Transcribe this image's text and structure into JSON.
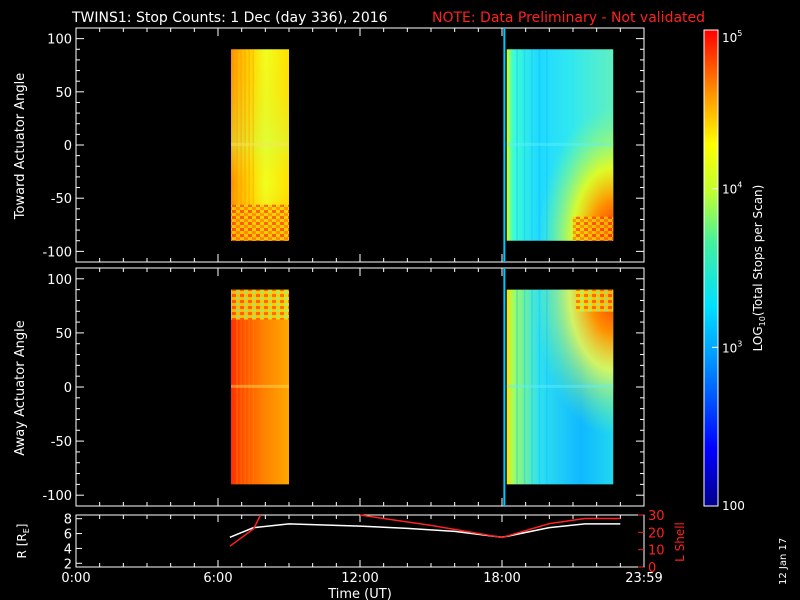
{
  "title": "TWINS1: Stop Counts:  1 Dec (day 336), 2016",
  "note": "NOTE: Data Preliminary - Not validated",
  "date_stamp": "12 Jan 17",
  "colors": {
    "background": "#000000",
    "axes": "#ffffff",
    "note": "#ff2020",
    "lshell": "#ff2020",
    "radius": "#ffffff",
    "marker": "#00c8ff"
  },
  "chart_data": [
    {
      "type": "heatmap",
      "panel": "toward",
      "ylabel": "Toward Actuator Angle",
      "ylim": [
        -110,
        110
      ],
      "yticks": [
        100,
        50,
        0,
        -50,
        -100
      ],
      "ytick_labels": [
        "100",
        "50",
        "0",
        "-50",
        "-100"
      ],
      "xlim_hours": [
        0,
        24
      ],
      "blocks": [
        {
          "start_hour": 6.55,
          "end_hour": 9.0,
          "angle_range": [
            -90,
            90
          ],
          "level": "high (orange-yellow)"
        },
        {
          "start_hour": 18.2,
          "end_hour": 22.7,
          "angle_range": [
            -90,
            90
          ],
          "level": "low (cyan-green)"
        }
      ],
      "marker_hour": 18.1
    },
    {
      "type": "heatmap",
      "panel": "away",
      "ylabel": "Away Actuator Angle",
      "ylim": [
        -110,
        110
      ],
      "yticks": [
        100,
        50,
        0,
        -50,
        -100
      ],
      "ytick_labels": [
        "100",
        "50",
        "0",
        "-50",
        "-100"
      ],
      "xlim_hours": [
        0,
        24
      ],
      "blocks": [
        {
          "start_hour": 6.55,
          "end_hour": 9.0,
          "angle_range": [
            -90,
            90
          ],
          "level": "high (orange-red)"
        },
        {
          "start_hour": 18.2,
          "end_hour": 22.7,
          "angle_range": [
            -90,
            90
          ],
          "level": "low (cyan-blue)"
        }
      ],
      "marker_hour": 18.1
    },
    {
      "type": "line",
      "panel": "orbit",
      "xlabel": "Time (UT)",
      "xticks_hours": [
        0,
        6,
        12,
        18,
        24
      ],
      "xtick_labels": [
        "0:00",
        "6:00",
        "12:00",
        "18:00",
        "23:59"
      ],
      "y_left_label": "R [RE]",
      "y_left_label_parts": [
        "R [R",
        "E",
        "]"
      ],
      "y_left_lim": [
        1.5,
        8.5
      ],
      "y_left_ticks": [
        "8",
        "6",
        "4",
        "2"
      ],
      "y_right_label": "L Shell",
      "y_right_lim": [
        0,
        30
      ],
      "y_right_ticks": [
        "30",
        "20",
        "10",
        "0"
      ],
      "series": [
        {
          "axis": "left",
          "color": "#ffffff",
          "x": [
            6.5,
            7.5,
            9,
            12,
            14,
            16,
            18,
            20,
            21.5,
            23
          ],
          "y": [
            5.5,
            6.8,
            7.3,
            7.0,
            6.7,
            6.3,
            5.5,
            6.8,
            7.3,
            7.3
          ]
        },
        {
          "axis": "right",
          "color": "#ff2020",
          "segments": [
            {
              "x": [
                6.5,
                7.5,
                7.8
              ],
              "y": [
                12,
                22,
                30
              ]
            },
            {
              "x": [
                12,
                15,
                18,
                20,
                21.5,
                23
              ],
              "y": [
                30,
                24,
                17,
                25,
                28,
                28
              ]
            }
          ]
        }
      ]
    }
  ],
  "colorbar": {
    "label": "LOG10(Total Stops per Scan)",
    "label_parts": [
      "LOG",
      "10",
      "(Total Stops per Scan)"
    ],
    "scale": "log",
    "range": [
      100,
      100000
    ],
    "ticks": [
      {
        "value": 100000,
        "base": "10",
        "exp": "5"
      },
      {
        "value": 10000,
        "base": "10",
        "exp": "4"
      },
      {
        "value": 1000,
        "base": "10",
        "exp": "3"
      },
      {
        "value": 100,
        "base": "100",
        "exp": ""
      }
    ]
  }
}
